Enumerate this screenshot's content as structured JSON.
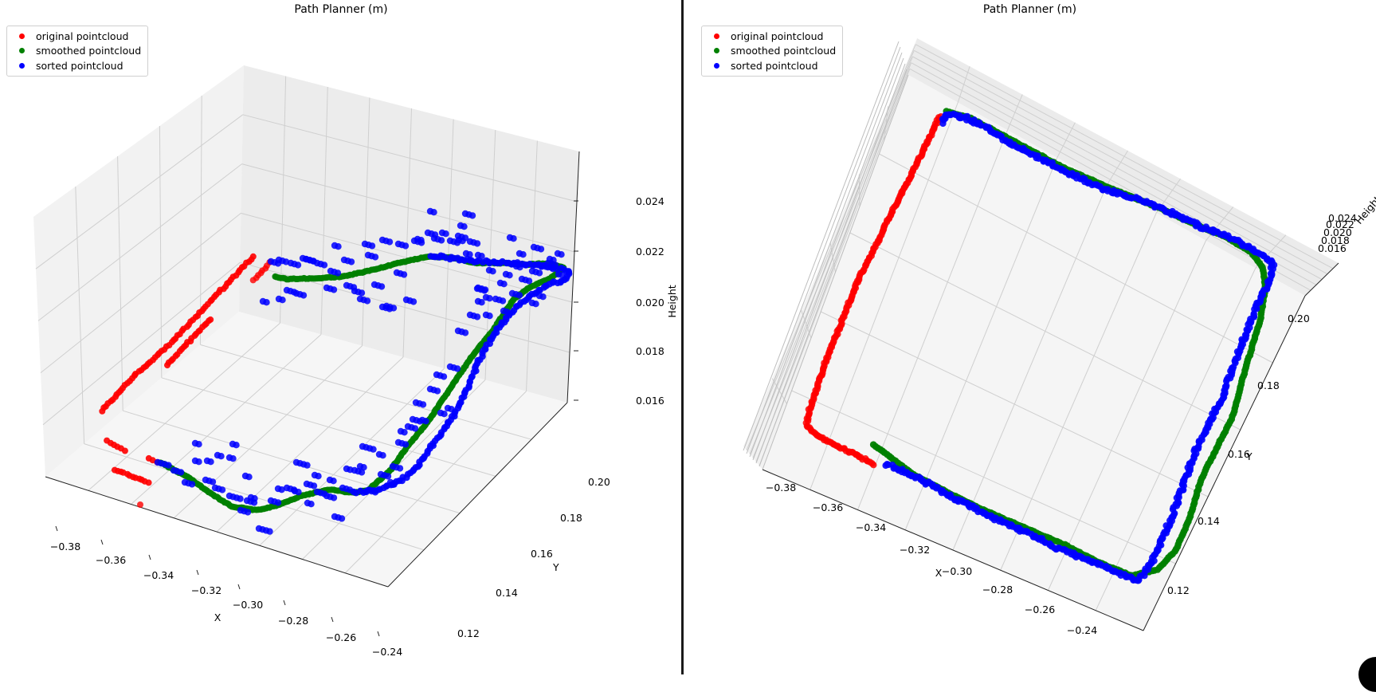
{
  "colors": {
    "original": "#ff0000",
    "smoothed": "#008000",
    "sorted": "#0000ff"
  },
  "legend": [
    {
      "label": "original pointcloud",
      "color": "#ff0000"
    },
    {
      "label": "smoothed pointcloud",
      "color": "#008000"
    },
    {
      "label": "sorted pointcloud",
      "color": "#0000ff"
    }
  ],
  "chart_data": [
    {
      "type": "scatter",
      "view": "3d-perspective",
      "title": "Path Planner (m)",
      "xlabel": "X",
      "ylabel": "Y",
      "zlabel": "Height",
      "xlim": [
        -0.39,
        -0.23
      ],
      "ylim": [
        0.11,
        0.21
      ],
      "zlim": [
        0.015,
        0.025
      ],
      "xticks": [
        "−0.38",
        "−0.36",
        "−0.34",
        "−0.32",
        "−0.30",
        "−0.28",
        "−0.26",
        "−0.24"
      ],
      "yticks": [
        "0.12",
        "0.14",
        "0.16",
        "0.18",
        "0.20"
      ],
      "zticks": [
        "0.016",
        "0.018",
        "0.020",
        "0.022",
        "0.024"
      ],
      "grid": true,
      "legend_position": "top-left",
      "series": [
        {
          "name": "original pointcloud",
          "points": [
            [
              -0.384,
              0.135,
              0.018
            ],
            [
              -0.383,
              0.15,
              0.0195
            ],
            [
              -0.382,
              0.165,
              0.0208
            ],
            [
              -0.381,
              0.18,
              0.022
            ],
            [
              -0.38,
              0.195,
              0.0228
            ],
            [
              -0.379,
              0.205,
              0.0232
            ],
            [
              -0.37,
              0.14,
              0.016
            ],
            [
              -0.366,
              0.128,
              0.0162
            ],
            [
              -0.36,
              0.124,
              0.016
            ]
          ]
        },
        {
          "name": "smoothed pointcloud",
          "points": [
            [
              -0.355,
              0.12,
              0.0165
            ],
            [
              -0.33,
              0.118,
              0.0163
            ],
            [
              -0.3,
              0.121,
              0.0166
            ],
            [
              -0.275,
              0.122,
              0.0162
            ],
            [
              -0.255,
              0.14,
              0.0175
            ],
            [
              -0.245,
              0.165,
              0.0192
            ],
            [
              -0.24,
              0.19,
              0.021
            ],
            [
              -0.25,
              0.205,
              0.0214
            ],
            [
              -0.28,
              0.206,
              0.0218
            ],
            [
              -0.32,
              0.205,
              0.021
            ],
            [
              -0.36,
              0.203,
              0.0208
            ]
          ]
        },
        {
          "name": "sorted pointcloud",
          "points": [
            [
              -0.355,
              0.122,
              0.0166
            ],
            [
              -0.33,
              0.119,
              0.0164
            ],
            [
              -0.3,
              0.122,
              0.0167
            ],
            [
              -0.275,
              0.123,
              0.0163
            ],
            [
              -0.256,
              0.141,
              0.0176
            ],
            [
              -0.246,
              0.166,
              0.0193
            ],
            [
              -0.241,
              0.191,
              0.0211
            ],
            [
              -0.251,
              0.206,
              0.0215
            ],
            [
              -0.281,
              0.207,
              0.0219
            ],
            [
              -0.321,
              0.206,
              0.0211
            ],
            [
              -0.358,
              0.204,
              0.0209
            ]
          ]
        }
      ]
    },
    {
      "type": "scatter",
      "view": "3d-top",
      "title": "Path Planner (m)",
      "xlabel": "X",
      "ylabel": "Y",
      "zlabel": "Height",
      "xlim": [
        -0.39,
        -0.23
      ],
      "ylim": [
        0.11,
        0.21
      ],
      "zlim": [
        0.015,
        0.025
      ],
      "xticks": [
        "−0.38",
        "−0.36",
        "−0.34",
        "−0.32",
        "−0.30",
        "−0.28",
        "−0.26",
        "−0.24"
      ],
      "yticks": [
        "0.12",
        "0.14",
        "0.16",
        "0.18",
        "0.20"
      ],
      "zticks": [
        "0.016",
        "0.018",
        "0.020",
        "0.022",
        "0.024"
      ],
      "grid": true,
      "legend_position": "top-left",
      "series": [
        {
          "name": "original pointcloud",
          "points": [
            [
              -0.384,
              0.135,
              0.018
            ],
            [
              -0.382,
              0.165,
              0.0208
            ],
            [
              -0.38,
              0.195,
              0.0228
            ],
            [
              -0.37,
              0.14,
              0.016
            ],
            [
              -0.36,
              0.124,
              0.016
            ]
          ]
        },
        {
          "name": "smoothed pointcloud",
          "points": [
            [
              -0.355,
              0.12,
              0.0165
            ],
            [
              -0.3,
              0.121,
              0.0166
            ],
            [
              -0.255,
              0.14,
              0.0175
            ],
            [
              -0.24,
              0.19,
              0.021
            ],
            [
              -0.28,
              0.206,
              0.0218
            ],
            [
              -0.36,
              0.203,
              0.0208
            ]
          ]
        },
        {
          "name": "sorted pointcloud",
          "points": [
            [
              -0.355,
              0.122,
              0.0166
            ],
            [
              -0.3,
              0.122,
              0.0167
            ],
            [
              -0.256,
              0.141,
              0.0176
            ],
            [
              -0.241,
              0.191,
              0.0211
            ],
            [
              -0.281,
              0.207,
              0.0219
            ],
            [
              -0.358,
              0.204,
              0.0209
            ]
          ]
        }
      ]
    }
  ]
}
